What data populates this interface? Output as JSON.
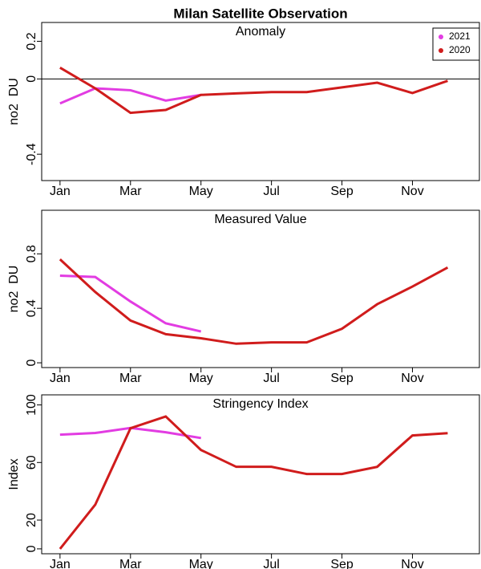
{
  "chart_data": [
    {
      "type": "line",
      "title": "Milan Satellite Observation",
      "subtitle": "Anomaly",
      "y_label": "no2  DU",
      "x": [
        1,
        2,
        3,
        4,
        5,
        6,
        7,
        8,
        9,
        10,
        11,
        12
      ],
      "xlim": [
        0.48,
        12.9
      ],
      "xticks": [
        {
          "value": 1,
          "label": "Jan"
        },
        {
          "value": 3,
          "label": "Mar"
        },
        {
          "value": 5,
          "label": "May"
        },
        {
          "value": 7,
          "label": "Jul"
        },
        {
          "value": 9,
          "label": "Sep"
        },
        {
          "value": 11,
          "label": "Nov"
        }
      ],
      "ylim": [
        -0.54,
        0.3
      ],
      "yticks": [
        -0.4,
        0.0,
        0.2
      ],
      "hline": 0,
      "legend": "topright",
      "series": [
        {
          "name": "2021",
          "color": "#e23ce2",
          "values": [
            -0.13,
            -0.05,
            -0.06,
            -0.115,
            -0.085,
            null,
            null,
            null,
            null,
            null,
            null,
            null
          ]
        },
        {
          "name": "2020",
          "color": "#d01c1c",
          "values": [
            0.06,
            -0.05,
            -0.18,
            -0.165,
            -0.085,
            -0.077,
            -0.07,
            -0.07,
            -0.045,
            -0.02,
            -0.075,
            -0.01
          ]
        }
      ]
    },
    {
      "type": "line",
      "subtitle": "Measured Value",
      "y_label": "no2  DU",
      "x": [
        1,
        2,
        3,
        4,
        5,
        6,
        7,
        8,
        9,
        10,
        11,
        12
      ],
      "xlim": [
        0.48,
        12.9
      ],
      "xticks": [
        {
          "value": 1,
          "label": "Jan"
        },
        {
          "value": 3,
          "label": "Mar"
        },
        {
          "value": 5,
          "label": "May"
        },
        {
          "value": 7,
          "label": "Jul"
        },
        {
          "value": 9,
          "label": "Sep"
        },
        {
          "value": 11,
          "label": "Nov"
        }
      ],
      "ylim": [
        -0.035,
        1.12
      ],
      "yticks": [
        0.0,
        0.4,
        0.8
      ],
      "series": [
        {
          "name": "2021",
          "color": "#e23ce2",
          "values": [
            0.64,
            0.63,
            0.45,
            0.29,
            0.23,
            null,
            null,
            null,
            null,
            null,
            null,
            null
          ]
        },
        {
          "name": "2020",
          "color": "#d01c1c",
          "values": [
            0.76,
            0.52,
            0.31,
            0.21,
            0.18,
            0.14,
            0.15,
            0.15,
            0.25,
            0.43,
            0.56,
            0.7
          ]
        }
      ]
    },
    {
      "type": "line",
      "subtitle": "Stringency Index",
      "y_label": "Index",
      "x": [
        1,
        2,
        3,
        4,
        5,
        6,
        7,
        8,
        9,
        10,
        11,
        12
      ],
      "xlim": [
        0.48,
        12.9
      ],
      "xticks": [
        {
          "value": 1,
          "label": "Jan"
        },
        {
          "value": 3,
          "label": "Mar"
        },
        {
          "value": 5,
          "label": "May"
        },
        {
          "value": 7,
          "label": "Jul"
        },
        {
          "value": 9,
          "label": "Sep"
        },
        {
          "value": 11,
          "label": "Nov"
        }
      ],
      "ylim": [
        -3.4,
        107
      ],
      "yticks": [
        0,
        20,
        60,
        100
      ],
      "series": [
        {
          "name": "2021",
          "color": "#e23ce2",
          "values": [
            79.3,
            80.5,
            84,
            81,
            77,
            null,
            null,
            null,
            null,
            null,
            null,
            null
          ]
        },
        {
          "name": "2020",
          "color": "#d01c1c",
          "values": [
            0,
            30.7,
            83.8,
            92,
            68.7,
            57,
            57,
            52,
            52,
            57,
            78.8,
            80.4
          ]
        }
      ]
    }
  ]
}
